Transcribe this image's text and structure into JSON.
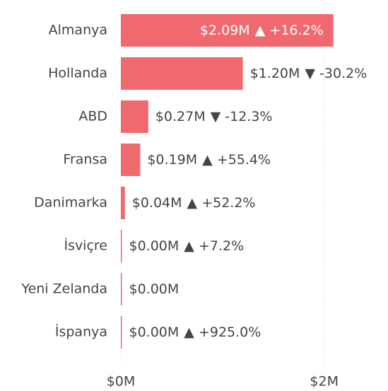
{
  "chart_data": {
    "type": "bar",
    "orientation": "horizontal",
    "categories": [
      "Almanya",
      "Hollanda",
      "ABD",
      "Fransa",
      "Danimarka",
      "İsviçre",
      "Yeni Zelanda",
      "İspanya"
    ],
    "values": [
      2090000,
      1200000,
      270000,
      190000,
      40000,
      3000,
      2000,
      3000
    ],
    "value_labels": [
      "$2.09M",
      "$1.20M",
      "$0.27M",
      "$0.19M",
      "$0.04M",
      "$0.00M",
      "$0.00M",
      "$0.00M"
    ],
    "change_labels": [
      "▲ +16.2%",
      "▼ -30.2%",
      "▼ -12.3%",
      "▲ +55.4%",
      "▲ +52.2%",
      "▲ +7.2%",
      null,
      "▲ +925.0%"
    ],
    "color": "#f0696f",
    "xlim": [
      0,
      2600000
    ],
    "xticks": [
      {
        "value": 0,
        "label": "$0M"
      },
      {
        "value": 2000000,
        "label": "$2M"
      }
    ],
    "grid": true
  }
}
